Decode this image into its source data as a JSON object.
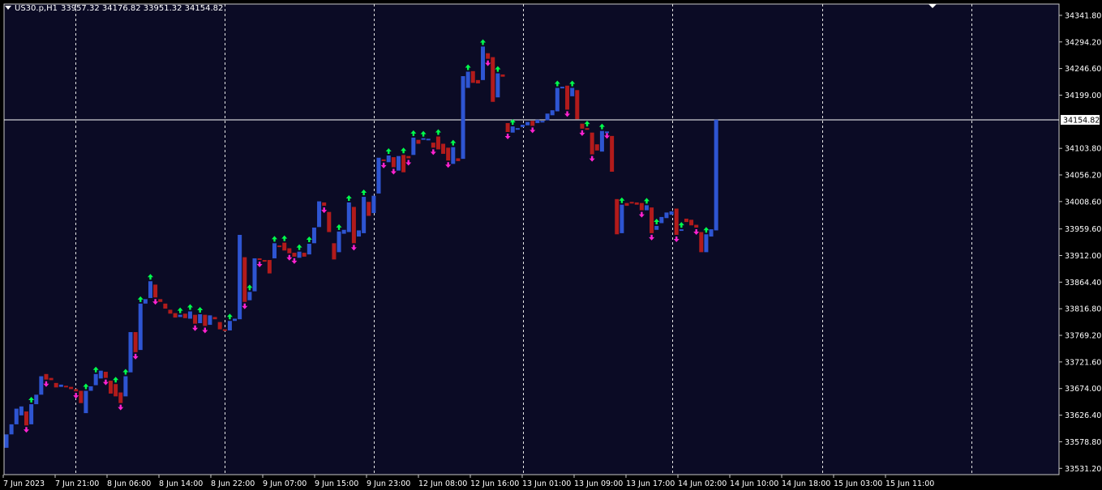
{
  "header": {
    "symbol_tf": "US30.p,H1",
    "ohlc": "33957.32 34176.82 33951.32 34154.82"
  },
  "chart_data": {
    "type": "candlestick",
    "symbol": "US30.p",
    "timeframe": "H1",
    "price_axis_labels": [
      "34341.80",
      "34294.20",
      "34246.60",
      "34199.00",
      "34103.80",
      "34056.20",
      "34008.60",
      "33959.60",
      "33912.00",
      "33864.40",
      "33816.80",
      "33769.20",
      "33721.60",
      "33674.00",
      "33626.40",
      "33578.80",
      "33531.20"
    ],
    "time_axis_labels": [
      "7 Jun 2023",
      "7 Jun 21:00",
      "8 Jun 06:00",
      "8 Jun 14:00",
      "8 Jun 22:00",
      "9 Jun 07:00",
      "9 Jun 15:00",
      "9 Jun 23:00",
      "12 Jun 08:00",
      "12 Jun 16:00",
      "13 Jun 01:00",
      "13 Jun 09:00",
      "13 Jun 17:00",
      "14 Jun 02:00",
      "14 Jun 10:00",
      "14 Jun 18:00",
      "15 Jun 03:00",
      "15 Jun 11:00"
    ],
    "current_price": "34154.82",
    "ylim": [
      33520,
      34362
    ],
    "grid": "vertical-dashed",
    "colors": {
      "background": "#0b0b25",
      "bull": "#2e55d2",
      "bear": "#b21b1b",
      "arrow_up": "#00ff4c",
      "arrow_down": "#ff22d0",
      "grid": "#e6e6e6",
      "text": "#ffffff"
    },
    "candles": [
      {
        "o": 33568,
        "c": 33592
      },
      {
        "o": 33592,
        "c": 33610
      },
      {
        "o": 33610,
        "c": 33638
      },
      {
        "o": 33626,
        "c": 33642
      },
      {
        "o": 33633,
        "c": 33608,
        "arrow": "down"
      },
      {
        "o": 33610,
        "c": 33646,
        "arrow": "up"
      },
      {
        "o": 33646,
        "c": 33663
      },
      {
        "o": 33663,
        "c": 33696
      },
      {
        "o": 33700,
        "c": 33690,
        "arrow": "down"
      },
      {
        "o": 33693,
        "c": 33689
      },
      {
        "o": 33684,
        "c": 33676
      },
      {
        "o": 33677,
        "c": 33681
      },
      {
        "o": 33679,
        "c": 33677
      },
      {
        "o": 33677,
        "c": 33673
      },
      {
        "o": 33673,
        "c": 33669,
        "arrow": "down"
      },
      {
        "o": 33670,
        "c": 33648
      },
      {
        "o": 33630,
        "c": 33670,
        "arrow": "up"
      },
      {
        "o": 33670,
        "c": 33678
      },
      {
        "o": 33680,
        "c": 33700,
        "arrow": "up"
      },
      {
        "o": 33692,
        "c": 33706
      },
      {
        "o": 33704,
        "c": 33693,
        "arrow": "down"
      },
      {
        "o": 33688,
        "c": 33665
      },
      {
        "o": 33682,
        "c": 33660,
        "arrow": "up"
      },
      {
        "o": 33667,
        "c": 33648,
        "arrow": "down"
      },
      {
        "o": 33660,
        "c": 33696,
        "arrow": "up"
      },
      {
        "o": 33703,
        "c": 33775
      },
      {
        "o": 33775,
        "c": 33739,
        "arrow": "down"
      },
      {
        "o": 33743,
        "c": 33826,
        "arrow": "up"
      },
      {
        "o": 33826,
        "c": 33834
      },
      {
        "o": 33836,
        "c": 33866,
        "arrow": "up"
      },
      {
        "o": 33860,
        "c": 33837,
        "arrow": "down"
      },
      {
        "o": 33834,
        "c": 33829
      },
      {
        "o": 33826,
        "c": 33817
      },
      {
        "o": 33815,
        "c": 33808
      },
      {
        "o": 33809,
        "c": 33801
      },
      {
        "o": 33802,
        "c": 33806,
        "arrow": "up"
      },
      {
        "o": 33808,
        "c": 33800
      },
      {
        "o": 33799,
        "c": 33812,
        "arrow": "up"
      },
      {
        "o": 33806,
        "c": 33790,
        "arrow": "down"
      },
      {
        "o": 33791,
        "c": 33807,
        "arrow": "up"
      },
      {
        "o": 33806,
        "c": 33786,
        "arrow": "down"
      },
      {
        "o": 33788,
        "c": 33805
      },
      {
        "o": 33802,
        "c": 33798
      },
      {
        "o": 33793,
        "c": 33780
      },
      {
        "o": 33780,
        "c": 33778
      },
      {
        "o": 33778,
        "c": 33795,
        "arrow": "up"
      },
      {
        "o": 33795,
        "c": 33799
      },
      {
        "o": 33798,
        "c": 33949
      },
      {
        "o": 33909,
        "c": 33829,
        "arrow": "down"
      },
      {
        "o": 33832,
        "c": 33847,
        "arrow": "up"
      },
      {
        "o": 33848,
        "c": 33907
      },
      {
        "o": 33907,
        "c": 33904,
        "arrow": "down"
      },
      {
        "o": 33904,
        "c": 33901
      },
      {
        "o": 33904,
        "c": 33880
      },
      {
        "o": 33907,
        "c": 33934,
        "arrow": "up"
      },
      {
        "o": 33930,
        "c": 33928
      },
      {
        "o": 33935,
        "c": 33921,
        "arrow": "up"
      },
      {
        "o": 33925,
        "c": 33916,
        "arrow": "down"
      },
      {
        "o": 33917,
        "c": 33910,
        "arrow": "down"
      },
      {
        "o": 33908,
        "c": 33919,
        "arrow": "up"
      },
      {
        "o": 33917,
        "c": 33910
      },
      {
        "o": 33914,
        "c": 33933,
        "arrow": "up"
      },
      {
        "o": 33934,
        "c": 33962
      },
      {
        "o": 33963,
        "c": 34009
      },
      {
        "o": 34007,
        "c": 34001,
        "arrow": "down"
      },
      {
        "o": 33990,
        "c": 33954
      },
      {
        "o": 33934,
        "c": 33905
      },
      {
        "o": 33918,
        "c": 33955,
        "arrow": "up"
      },
      {
        "o": 33951,
        "c": 33958
      },
      {
        "o": 33954,
        "c": 34007,
        "arrow": "up"
      },
      {
        "o": 33999,
        "c": 33934,
        "arrow": "down"
      },
      {
        "o": 33946,
        "c": 33957
      },
      {
        "o": 33952,
        "c": 34017,
        "arrow": "up"
      },
      {
        "o": 34008,
        "c": 33983
      },
      {
        "o": 33988,
        "c": 34019
      },
      {
        "o": 34023,
        "c": 34087
      },
      {
        "o": 34084,
        "c": 34081,
        "arrow": "down"
      },
      {
        "o": 34079,
        "c": 34091,
        "arrow": "up"
      },
      {
        "o": 34088,
        "c": 34070,
        "arrow": "down"
      },
      {
        "o": 34064,
        "c": 34090
      },
      {
        "o": 34092,
        "c": 34061,
        "arrow": "up"
      },
      {
        "o": 34090,
        "c": 34086,
        "arrow": "down"
      },
      {
        "o": 34092,
        "c": 34123,
        "arrow": "up"
      },
      {
        "o": 34119,
        "c": 34112
      },
      {
        "o": 34122,
        "c": 34122,
        "arrow": "up"
      },
      {
        "o": 34119,
        "c": 34121
      },
      {
        "o": 34114,
        "c": 34105,
        "arrow": "down"
      },
      {
        "o": 34125,
        "c": 34102,
        "arrow": "up"
      },
      {
        "o": 34112,
        "c": 34094
      },
      {
        "o": 34105,
        "c": 34082,
        "arrow": "down"
      },
      {
        "o": 34076,
        "c": 34106,
        "arrow": "up"
      },
      {
        "o": 34086,
        "c": 34081
      },
      {
        "o": 34085,
        "c": 34233
      },
      {
        "o": 34212,
        "c": 34241,
        "arrow": "up"
      },
      {
        "o": 34242,
        "c": 34221
      },
      {
        "o": 34226,
        "c": 34220
      },
      {
        "o": 34226,
        "c": 34286,
        "arrow": "up"
      },
      {
        "o": 34274,
        "c": 34264,
        "arrow": "down"
      },
      {
        "o": 34267,
        "c": 34187
      },
      {
        "o": 34195,
        "c": 34238,
        "arrow": "up"
      },
      {
        "o": 34236,
        "c": 34232
      },
      {
        "o": 34149,
        "c": 34133,
        "arrow": "down"
      },
      {
        "o": 34132,
        "c": 34143,
        "arrow": "up"
      },
      {
        "o": 34140,
        "c": 34140
      },
      {
        "o": 34142,
        "c": 34146
      },
      {
        "o": 34145,
        "c": 34151
      },
      {
        "o": 34153,
        "c": 34144,
        "arrow": "down"
      },
      {
        "o": 34149,
        "c": 34155
      },
      {
        "o": 34152,
        "c": 34153
      },
      {
        "o": 34154,
        "c": 34166
      },
      {
        "o": 34163,
        "c": 34172
      },
      {
        "o": 34170,
        "c": 34212,
        "arrow": "up"
      },
      {
        "o": 34212,
        "c": 34214
      },
      {
        "o": 34216,
        "c": 34173,
        "arrow": "down"
      },
      {
        "o": 34197,
        "c": 34212,
        "arrow": "up"
      },
      {
        "o": 34208,
        "c": 34156
      },
      {
        "o": 34148,
        "c": 34139,
        "arrow": "down"
      },
      {
        "o": 34140,
        "c": 34137,
        "arrow": "up"
      },
      {
        "o": 34132,
        "c": 34093,
        "arrow": "down"
      },
      {
        "o": 34111,
        "c": 34100
      },
      {
        "o": 34098,
        "c": 34135,
        "arrow": "up"
      },
      {
        "o": 34134,
        "c": 34134,
        "arrow": "down"
      },
      {
        "o": 34126,
        "c": 34062
      },
      {
        "o": 34013,
        "c": 33950
      },
      {
        "o": 33952,
        "c": 34003,
        "arrow": "up"
      },
      {
        "o": 34006,
        "c": 34001
      },
      {
        "o": 34008,
        "c": 34006
      },
      {
        "o": 34007,
        "c": 34003
      },
      {
        "o": 34006,
        "c": 33993,
        "arrow": "down"
      },
      {
        "o": 33993,
        "c": 34002,
        "arrow": "up"
      },
      {
        "o": 33998,
        "c": 33952,
        "arrow": "down"
      },
      {
        "o": 33958,
        "c": 33965,
        "arrow": "up"
      },
      {
        "o": 33970,
        "c": 33981
      },
      {
        "o": 33979,
        "c": 33989
      },
      {
        "o": 33985,
        "c": 33991
      },
      {
        "o": 33996,
        "c": 33949,
        "arrow": "down"
      },
      {
        "o": 33957,
        "c": 33959,
        "arrow": "up"
      },
      {
        "o": 33978,
        "c": 33972
      },
      {
        "o": 33976,
        "c": 33966
      },
      {
        "o": 33967,
        "c": 33962,
        "arrow": "down"
      },
      {
        "o": 33954,
        "c": 33918
      },
      {
        "o": 33918,
        "c": 33950,
        "arrow": "up"
      },
      {
        "o": 33946,
        "c": 33959
      },
      {
        "o": 33957,
        "c": 34155
      }
    ]
  }
}
